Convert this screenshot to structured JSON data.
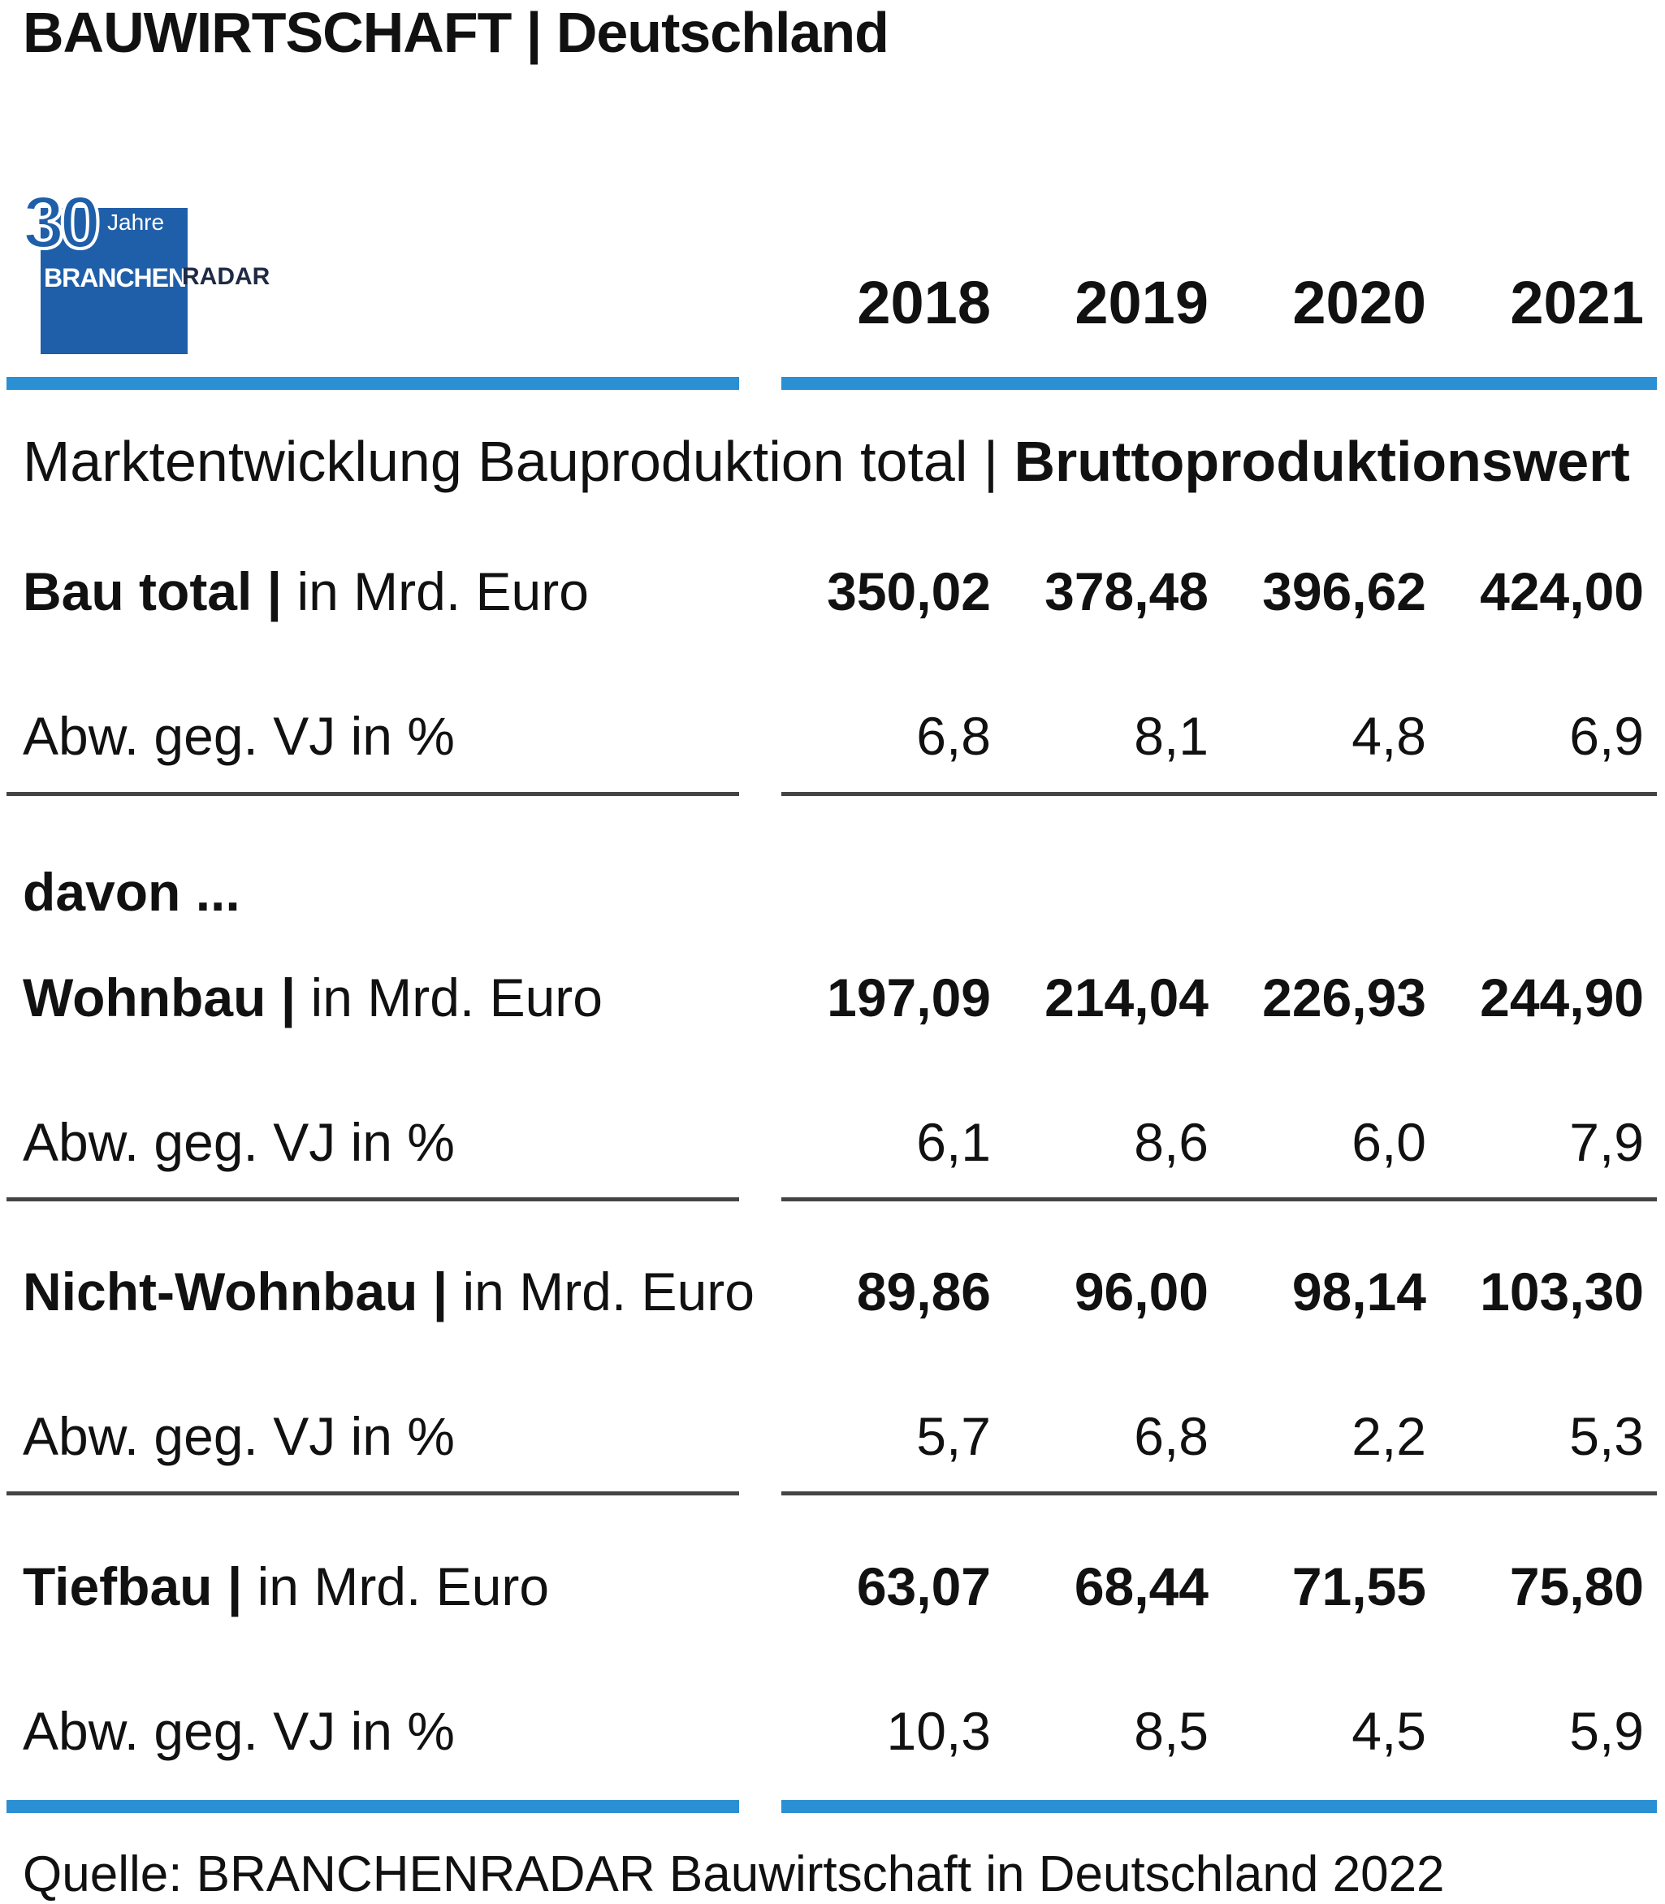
{
  "header": {
    "title": "BAUWIRTSCHAFT | Deutschland"
  },
  "logo": {
    "number": "30",
    "jahre": "Jahre",
    "word_a": "BRANCHEN",
    "word_b": "RADAR"
  },
  "subtitle": {
    "normal": "Marktentwicklung Bauproduktion total | ",
    "bold": "Bruttoproduktionswert"
  },
  "years": [
    "2018",
    "2019",
    "2020",
    "2021"
  ],
  "davon": "davon ...",
  "rows": [
    {
      "label_bold": "Bau total |",
      "label_normal": " in Mrd. Euro",
      "values": [
        "350,02",
        "378,48",
        "396,62",
        "424,00"
      ],
      "bold": true
    },
    {
      "label_bold": "",
      "label_normal": "Abw. geg. VJ in %",
      "values": [
        "6,8",
        "8,1",
        "4,8",
        "6,9"
      ],
      "bold": false
    },
    {
      "label_bold": "Wohnbau |",
      "label_normal": " in Mrd. Euro",
      "values": [
        "197,09",
        "214,04",
        "226,93",
        "244,90"
      ],
      "bold": true
    },
    {
      "label_bold": "",
      "label_normal": "Abw. geg. VJ in %",
      "values": [
        "6,1",
        "8,6",
        "6,0",
        "7,9"
      ],
      "bold": false
    },
    {
      "label_bold": "Nicht-Wohnbau |",
      "label_normal": " in Mrd. Euro",
      "values": [
        "89,86",
        "96,00",
        "98,14",
        "103,30"
      ],
      "bold": true
    },
    {
      "label_bold": "",
      "label_normal": "Abw. geg. VJ in %",
      "values": [
        "5,7",
        "6,8",
        "2,2",
        "5,3"
      ],
      "bold": false
    },
    {
      "label_bold": "Tiefbau |",
      "label_normal": " in Mrd. Euro",
      "values": [
        "63,07",
        "68,44",
        "71,55",
        "75,80"
      ],
      "bold": true
    },
    {
      "label_bold": "",
      "label_normal": "Abw. geg. VJ in %",
      "values": [
        "10,3",
        "8,5",
        "4,5",
        "5,9"
      ],
      "bold": false
    }
  ],
  "source": "Quelle: BRANCHENRADAR Bauwirtschaft in Deutschland 2022",
  "colors": {
    "accent": "#2b8fd3",
    "logo_blue": "#1f5fa9",
    "rule_gray": "#444444"
  },
  "chart_data": {
    "type": "table",
    "title": "BAUWIRTSCHAFT | Deutschland",
    "subtitle": "Marktentwicklung Bauproduktion total | Bruttoproduktionswert",
    "columns": [
      "2018",
      "2019",
      "2020",
      "2021"
    ],
    "series": [
      {
        "name": "Bau total | in Mrd. Euro",
        "values": [
          350.02,
          378.48,
          396.62,
          424.0
        ]
      },
      {
        "name": "Bau total Abw. geg. VJ in %",
        "values": [
          6.8,
          8.1,
          4.8,
          6.9
        ]
      },
      {
        "name": "Wohnbau | in Mrd. Euro",
        "values": [
          197.09,
          214.04,
          226.93,
          244.9
        ]
      },
      {
        "name": "Wohnbau Abw. geg. VJ in %",
        "values": [
          6.1,
          8.6,
          6.0,
          7.9
        ]
      },
      {
        "name": "Nicht-Wohnbau | in Mrd. Euro",
        "values": [
          89.86,
          96.0,
          98.14,
          103.3
        ]
      },
      {
        "name": "Nicht-Wohnbau Abw. geg. VJ in %",
        "values": [
          5.7,
          6.8,
          2.2,
          5.3
        ]
      },
      {
        "name": "Tiefbau | in Mrd. Euro",
        "values": [
          63.07,
          68.44,
          71.55,
          75.8
        ]
      },
      {
        "name": "Tiefbau Abw. geg. VJ in %",
        "values": [
          10.3,
          8.5,
          4.5,
          5.9
        ]
      }
    ],
    "source": "Quelle: BRANCHENRADAR Bauwirtschaft in Deutschland 2022"
  }
}
